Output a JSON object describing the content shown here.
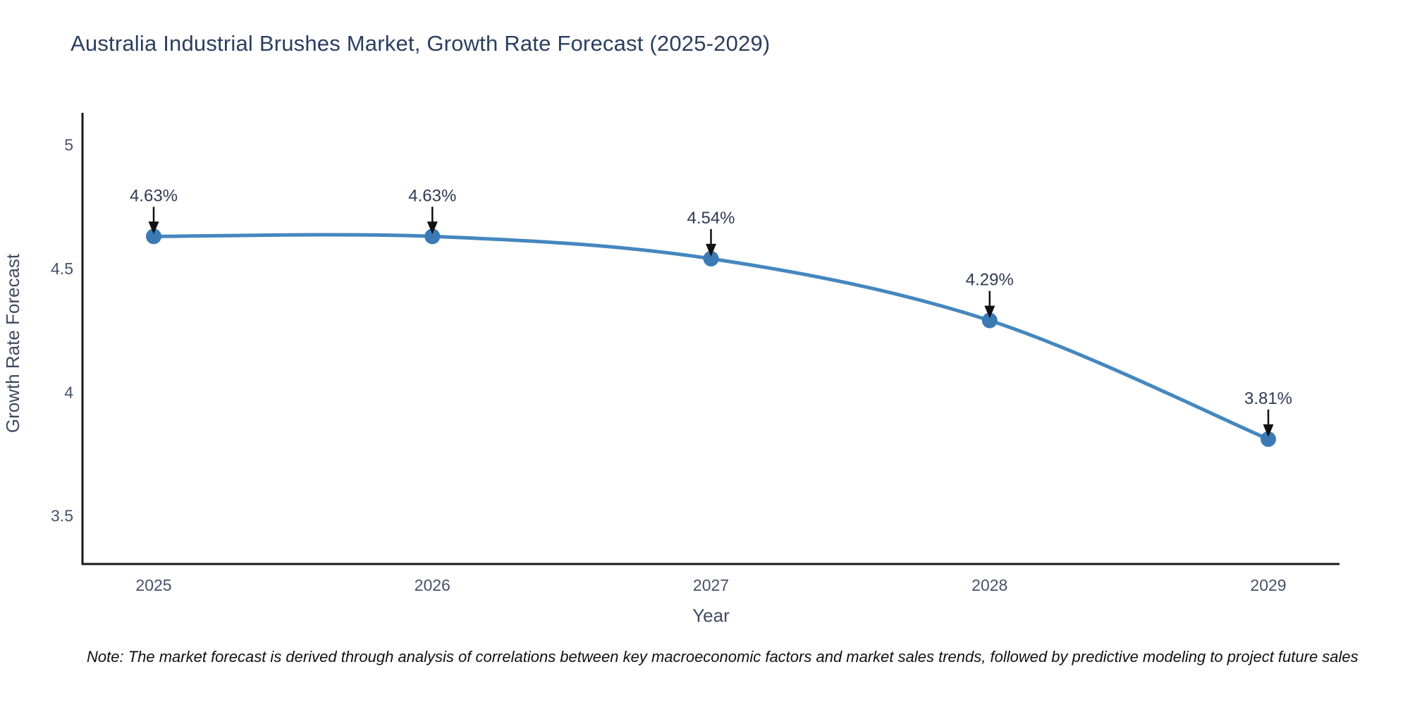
{
  "title": "Australia Industrial Brushes Market, Growth Rate Forecast (2025-2029)",
  "footnote": "Note: The market forecast is derived through analysis of correlations between key macroeconomic factors and market sales trends, followed by predictive modeling to project future sales",
  "chart_data": {
    "type": "line",
    "title": "Australia Industrial Brushes Market, Growth Rate Forecast (2025-2029)",
    "x": [
      2025,
      2026,
      2027,
      2028,
      2029
    ],
    "series": [
      {
        "name": "Growth Rate Forecast",
        "values": [
          4.63,
          4.63,
          4.54,
          4.29,
          3.81
        ]
      }
    ],
    "point_labels": [
      "4.63%",
      "4.63%",
      "4.54%",
      "4.29%",
      "3.81%"
    ],
    "xlabel": "Year",
    "ylabel": "Growth Rate Forecast",
    "ylim": [
      3.305,
      5.13
    ],
    "yticks": [
      3.5,
      4,
      4.5,
      5
    ],
    "grid": false,
    "legend": "none",
    "colors": {
      "line": "#4587bf",
      "marker": "#3a7ab5",
      "axis_line": "#1a1a1a",
      "tick_text": "#47516b",
      "axis_title_text": "#3f4a63",
      "annotation_text": "#2f3b52",
      "annotation_arrow": "#111111",
      "title_text": "#2a3f5f",
      "background": "#ffffff"
    }
  }
}
